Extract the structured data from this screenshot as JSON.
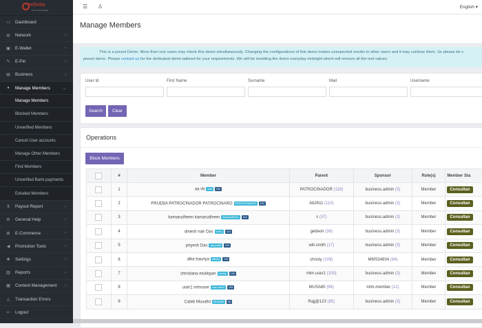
{
  "brand": {
    "logo_text": "Infinite",
    "logo_sub": "MLM SOFTWARE"
  },
  "sidebar": {
    "items": [
      {
        "label": "Dashboard",
        "icon": "desktop-icon",
        "chevron": false
      },
      {
        "label": "Network",
        "icon": "globe-icon",
        "chevron": true
      },
      {
        "label": "E-Wallet",
        "icon": "wallet-icon",
        "chevron": true
      },
      {
        "label": "E-Pin",
        "icon": "pin-icon",
        "chevron": true
      },
      {
        "label": "Business",
        "icon": "briefcase-icon",
        "chevron": true
      },
      {
        "label": "Manage Members",
        "icon": "user-icon",
        "chevron": true,
        "active": true
      }
    ],
    "subitems": [
      {
        "label": "Manage Members",
        "current": true
      },
      {
        "label": "Blocked Members"
      },
      {
        "label": "Unverified Members"
      },
      {
        "label": "Cancel User accounts"
      },
      {
        "label": "Manage Other Members"
      },
      {
        "label": "Find Members"
      },
      {
        "label": "Unverified Bank payments"
      },
      {
        "label": "Exluded Members"
      }
    ],
    "items_after": [
      {
        "label": "Payout Report",
        "icon": "money-icon",
        "chevron": true
      },
      {
        "label": "General Help",
        "icon": "gear-icon",
        "chevron": true
      },
      {
        "label": "E-Commerce",
        "icon": "cart-icon",
        "chevron": true
      },
      {
        "label": "Promotion Tools",
        "icon": "bullhorn-icon",
        "chevron": true
      },
      {
        "label": "Settings",
        "icon": "wrench-icon",
        "chevron": true
      },
      {
        "label": "Reports",
        "icon": "chart-icon",
        "chevron": true
      },
      {
        "label": "Content Management",
        "icon": "folder-icon",
        "chevron": true
      },
      {
        "label": "Transaction Errors",
        "icon": "warning-icon",
        "chevron": false
      },
      {
        "label": "Logout",
        "icon": "logout-icon",
        "chevron": false
      }
    ]
  },
  "topbar": {
    "language": "English"
  },
  "page": {
    "title": "Manage Members"
  },
  "notice": {
    "line1": "This is a preset Demo. More than one users may check this demo simultaneously.  Changing the configurations of this demo makes unexpected results to other users and it may confuse them. So please be c",
    "line2_pre": "preset demo. Please ",
    "link": "contact us",
    "line2_post": " for the dedicated demo tailored for your requirements. We will be resetting the demo everyday midnight which will remove all the test values."
  },
  "filter": {
    "fields": [
      "User Id",
      "First Name",
      "Surname",
      "Mail",
      "Username"
    ],
    "search_label": "Search",
    "clear_label": "Clear"
  },
  "operations": {
    "title": "Operations",
    "block_label": "Block Members",
    "columns": [
      "#",
      "Member",
      "Parent",
      "Sponsor",
      "Role(s)",
      "Member Sta"
    ],
    "rows": [
      {
        "num": "1",
        "name": "aa vb",
        "username": "aad",
        "id": "130",
        "parent": "PATROCINADOR",
        "parent_count": "(119)",
        "sponsor": "business.admin",
        "sponsor_count": "(3)",
        "role": "Member",
        "status": "Consultan"
      },
      {
        "num": "2",
        "name": "PRUEBA PATROCINADOR PATROCINARO",
        "username": "PATROCINADOR",
        "id": "119",
        "parent": "Ab2611",
        "parent_count": "(110)",
        "sponsor": "business.admin",
        "sponsor_count": "(3)",
        "role": "Member",
        "status": "Consultan"
      },
      {
        "num": "3",
        "name": "kamarudheen kamarudheen",
        "username": "kamarudheen",
        "id": "114",
        "parent": "s",
        "parent_count": "(37)",
        "sponsor": "business.admin",
        "sponsor_count": "(3)",
        "role": "Member",
        "status": "Consultan"
      },
      {
        "num": "4",
        "name": "dinesh nair Das",
        "username": "dork.j",
        "id": "113",
        "parent": "gedeon",
        "parent_count": "(36)",
        "sponsor": "business.admin",
        "sponsor_count": "(3)",
        "role": "Member",
        "status": "Consultan"
      },
      {
        "num": "5",
        "name": "priyesh Das",
        "username": "das.prahl",
        "id": "112",
        "parent": "will.smith",
        "parent_count": "(17)",
        "sponsor": "business.admin",
        "sponsor_count": "(3)",
        "role": "Member",
        "status": "Consultan"
      },
      {
        "num": "6",
        "name": "alka bauriya",
        "username": "Alk611",
        "id": "110",
        "parent": "christy",
        "parent_count": "(109)",
        "sponsor": "MMS34934",
        "sponsor_count": "(84)",
        "role": "Member",
        "status": "Consultan"
      },
      {
        "num": "7",
        "name": "christiana etukkpan",
        "username": "christy",
        "id": "109",
        "parent": "mlm.user1",
        "parent_count": "(105)",
        "sponsor": "business.admin",
        "sponsor_count": "(3)",
        "role": "Member",
        "status": "Consultan"
      },
      {
        "num": "8",
        "name": "user1 mlmuser",
        "username": "mlm.user1",
        "id": "105",
        "parent": "MUSA80",
        "parent_count": "(86)",
        "sponsor": "mlm.member",
        "sponsor_count": "(12)",
        "role": "Member",
        "status": "Consultan"
      },
      {
        "num": "9",
        "name": "Caleb Musafiri",
        "username": "MUSA80",
        "id": "86",
        "parent": "Rajj@123",
        "parent_count": "(85)",
        "sponsor": "business.admin",
        "sponsor_count": "(3)",
        "role": "Member",
        "status": "Consultan"
      }
    ]
  }
}
